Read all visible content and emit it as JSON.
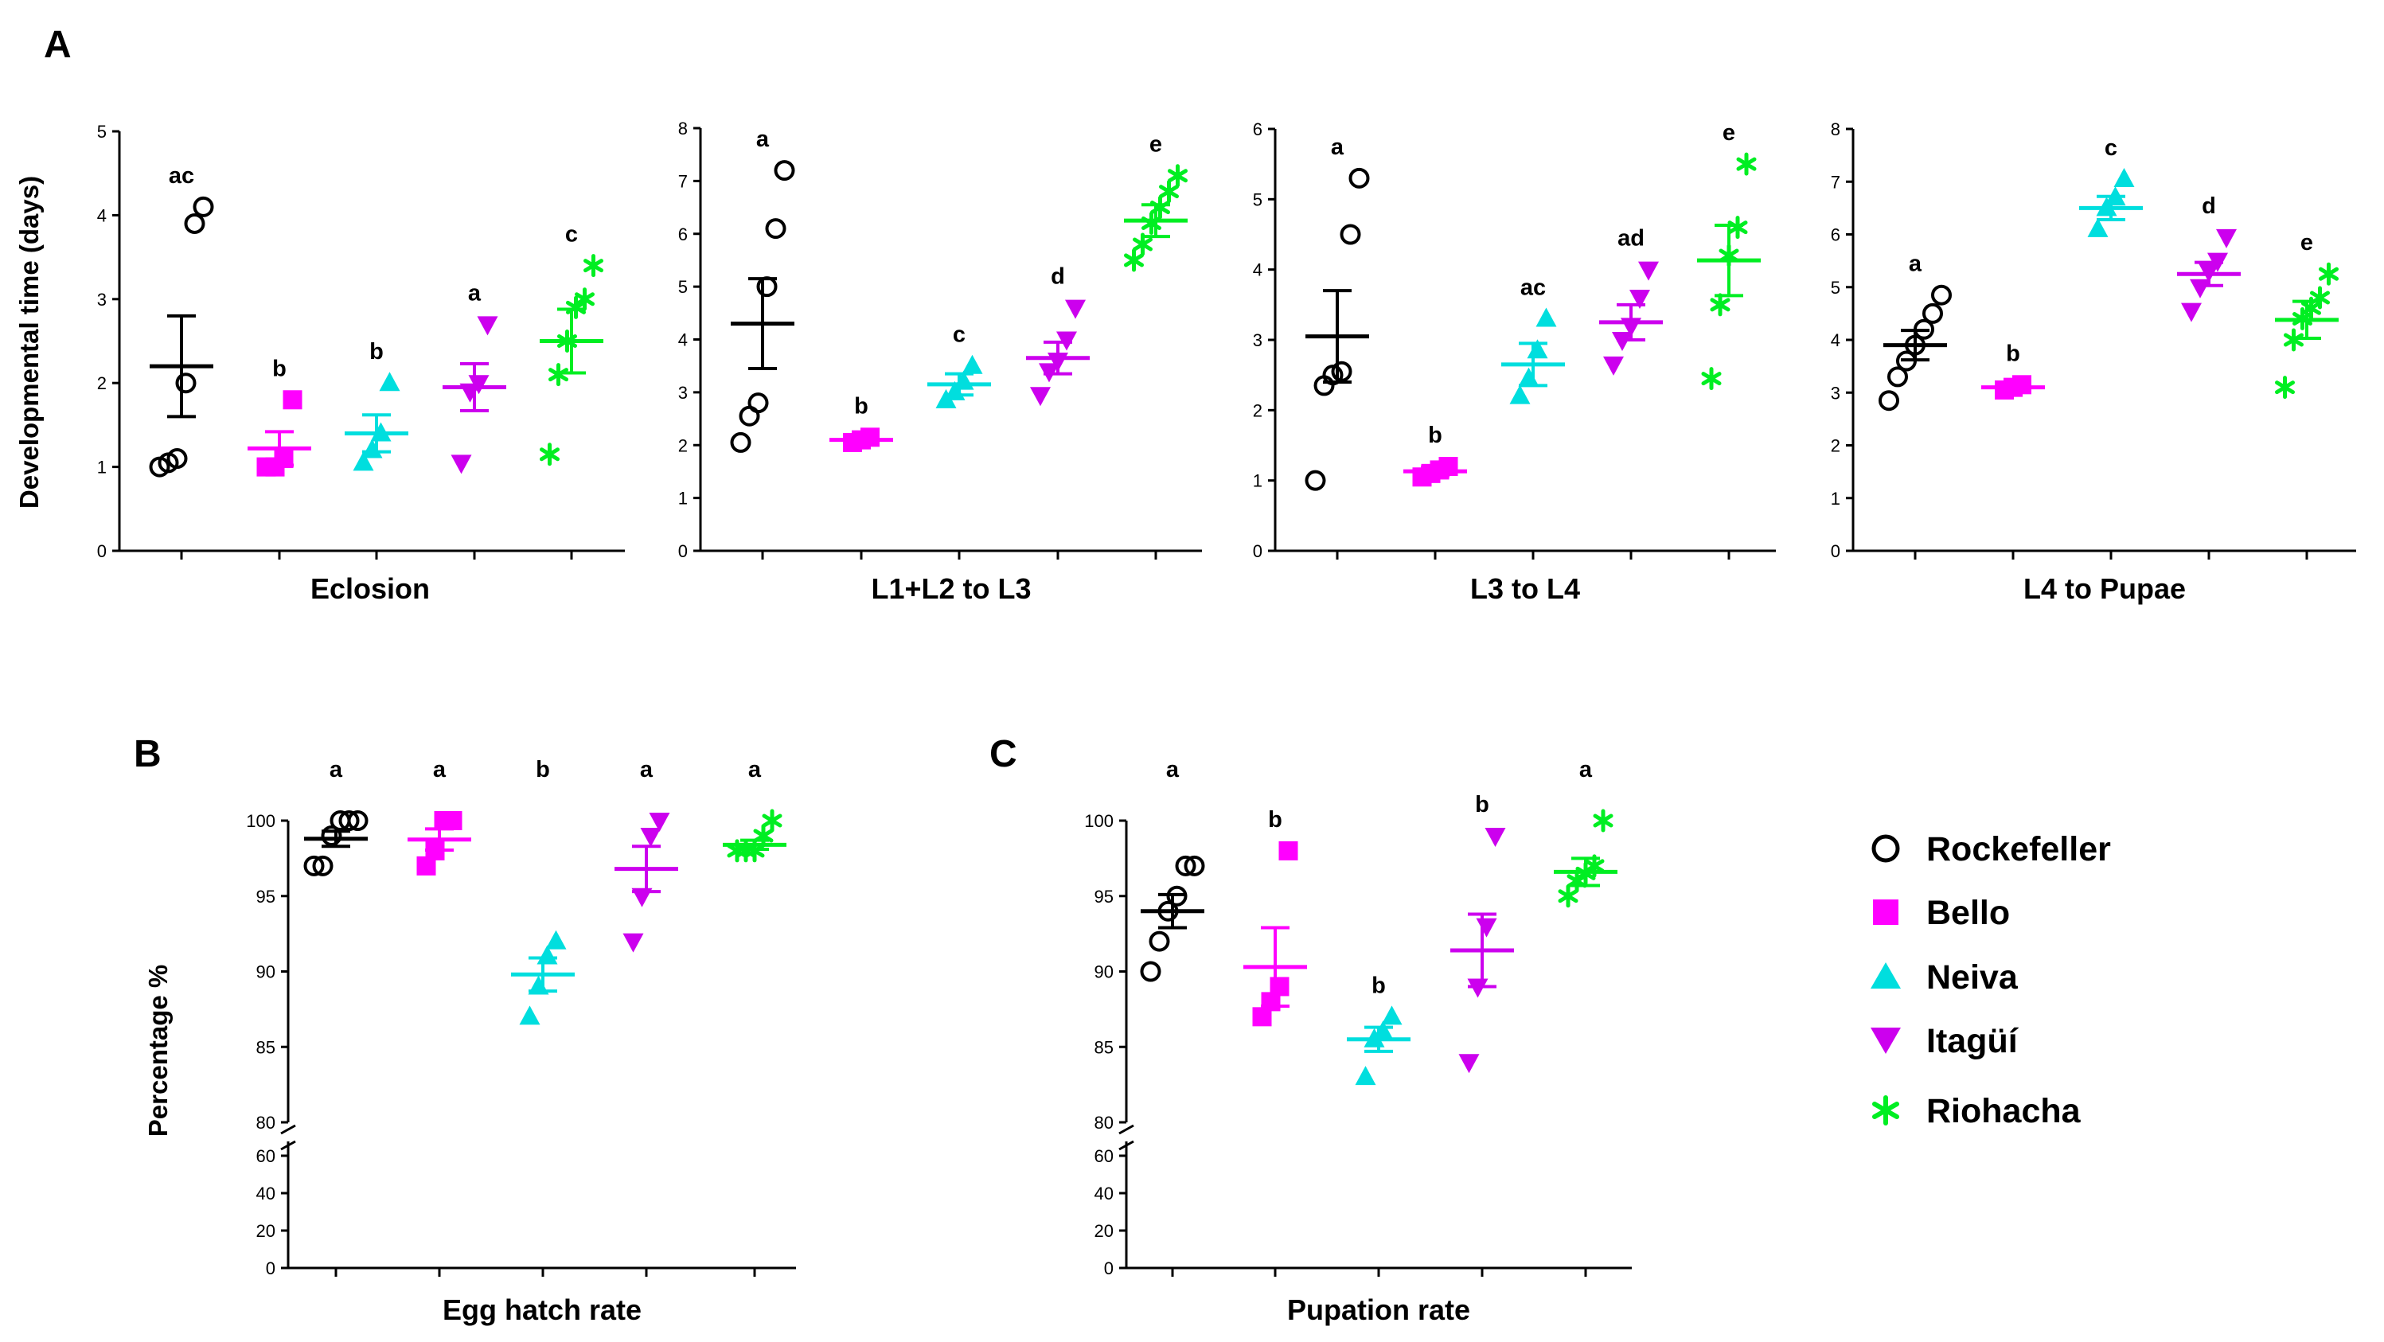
{
  "colors": {
    "Rockefeller": "#000000",
    "Bello": "#ff00ff",
    "Neiva": "#00dede",
    "Itagui": "#cc00ee",
    "Riohacha": "#00ee22"
  },
  "legend": {
    "items": [
      {
        "label": "Rockefeller",
        "marker": "circle-open-icon",
        "color": "#000000"
      },
      {
        "label": "Bello",
        "marker": "square-icon",
        "color": "#ff00ff"
      },
      {
        "label": "Neiva",
        "marker": "triangle-up-icon",
        "color": "#00dede"
      },
      {
        "label": "Itagüí",
        "marker": "triangle-down-icon",
        "color": "#cc00ee"
      },
      {
        "label": "Riohacha",
        "marker": "asterisk-icon",
        "color": "#00ee22"
      }
    ]
  },
  "chart_data": [
    {
      "panel": "A",
      "type": "scatter",
      "xlabel": "Eclosion",
      "ylabel": "Developmental time (days)",
      "ylim": [
        0,
        5
      ],
      "yticks": [
        0,
        1,
        2,
        3,
        4,
        5
      ],
      "groups": [
        {
          "name": "Rockefeller",
          "points": [
            1.0,
            1.05,
            1.1,
            2.0,
            3.9,
            4.1
          ],
          "mean": 2.2,
          "sem": 0.6,
          "letter": "ac"
        },
        {
          "name": "Bello",
          "points": [
            1.0,
            1.0,
            1.1,
            1.8
          ],
          "mean": 1.22,
          "sem": 0.2,
          "letter": "b"
        },
        {
          "name": "Neiva",
          "points": [
            1.05,
            1.2,
            1.4,
            2.0
          ],
          "mean": 1.4,
          "sem": 0.22,
          "letter": "b"
        },
        {
          "name": "Itagüí",
          "points": [
            1.05,
            1.9,
            2.0,
            2.7
          ],
          "mean": 1.95,
          "sem": 0.28,
          "letter": "a"
        },
        {
          "name": "Riohacha",
          "points": [
            1.15,
            2.1,
            2.5,
            2.9,
            3.0,
            3.4
          ],
          "mean": 2.5,
          "sem": 0.38,
          "letter": "c"
        }
      ]
    },
    {
      "panel": "A2",
      "type": "scatter",
      "xlabel": "L1+L2 to L3",
      "ylabel": "",
      "ylim": [
        0,
        8
      ],
      "yticks": [
        0,
        1,
        2,
        3,
        4,
        5,
        6,
        7,
        8
      ],
      "groups": [
        {
          "name": "Rockefeller",
          "points": [
            2.05,
            2.55,
            2.8,
            5.0,
            6.1,
            7.2
          ],
          "mean": 4.3,
          "sem": 0.85,
          "letter": "a"
        },
        {
          "name": "Bello",
          "points": [
            2.05,
            2.1,
            2.15
          ],
          "mean": 2.1,
          "sem": 0.05,
          "letter": "b"
        },
        {
          "name": "Neiva",
          "points": [
            2.85,
            3.0,
            3.2,
            3.5
          ],
          "mean": 3.15,
          "sem": 0.2,
          "letter": "c"
        },
        {
          "name": "Itagüí",
          "points": [
            2.95,
            3.4,
            3.6,
            4.0,
            4.6
          ],
          "mean": 3.65,
          "sem": 0.3,
          "letter": "d"
        },
        {
          "name": "Riohacha",
          "points": [
            5.5,
            5.8,
            6.2,
            6.5,
            6.8,
            7.1
          ],
          "mean": 6.25,
          "sem": 0.3,
          "letter": "e"
        }
      ]
    },
    {
      "panel": "A3",
      "type": "scatter",
      "xlabel": "L3 to L4",
      "ylabel": "",
      "ylim": [
        0,
        6
      ],
      "yticks": [
        0,
        1,
        2,
        3,
        4,
        5,
        6
      ],
      "groups": [
        {
          "name": "Rockefeller",
          "points": [
            1.0,
            2.35,
            2.5,
            2.55,
            4.5,
            5.3
          ],
          "mean": 3.05,
          "sem": 0.65,
          "letter": "a"
        },
        {
          "name": "Bello",
          "points": [
            1.05,
            1.1,
            1.15,
            1.2
          ],
          "mean": 1.13,
          "sem": 0.06,
          "letter": "b"
        },
        {
          "name": "Neiva",
          "points": [
            2.2,
            2.45,
            2.85,
            3.3
          ],
          "mean": 2.65,
          "sem": 0.3,
          "letter": "ac"
        },
        {
          "name": "Itagüí",
          "points": [
            2.65,
            3.0,
            3.2,
            3.6,
            4.0
          ],
          "mean": 3.25,
          "sem": 0.25,
          "letter": "ad"
        },
        {
          "name": "Riohacha",
          "points": [
            2.45,
            3.5,
            4.2,
            4.6,
            5.5
          ],
          "mean": 4.13,
          "sem": 0.5,
          "letter": "e"
        }
      ]
    },
    {
      "panel": "A4",
      "type": "scatter",
      "xlabel": "L4 to Pupae",
      "ylabel": "",
      "ylim": [
        0,
        8
      ],
      "yticks": [
        0,
        1,
        2,
        3,
        4,
        5,
        6,
        7,
        8
      ],
      "groups": [
        {
          "name": "Rockefeller",
          "points": [
            2.85,
            3.3,
            3.6,
            3.9,
            4.2,
            4.5,
            4.85
          ],
          "mean": 3.9,
          "sem": 0.28,
          "letter": "a"
        },
        {
          "name": "Bello",
          "points": [
            3.05,
            3.1,
            3.15
          ],
          "mean": 3.1,
          "sem": 0.05,
          "letter": "b"
        },
        {
          "name": "Neiva",
          "points": [
            6.1,
            6.5,
            6.7,
            7.05
          ],
          "mean": 6.5,
          "sem": 0.22,
          "letter": "c"
        },
        {
          "name": "Itagüí",
          "points": [
            4.55,
            5.0,
            5.3,
            5.5,
            5.95
          ],
          "mean": 5.25,
          "sem": 0.22,
          "letter": "d"
        },
        {
          "name": "Riohacha",
          "points": [
            3.1,
            4.0,
            4.4,
            4.6,
            4.8,
            5.25
          ],
          "mean": 4.38,
          "sem": 0.35,
          "letter": "e"
        }
      ]
    },
    {
      "panel": "B",
      "type": "scatter",
      "xlabel": "Egg hatch rate",
      "ylabel": "Percentage %",
      "ylim": [
        80,
        100
      ],
      "yticks": [
        80,
        85,
        90,
        95,
        100
      ],
      "lower_ylim": [
        0,
        60
      ],
      "lower_yticks": [
        0,
        20,
        40,
        60
      ],
      "groups": [
        {
          "name": "Rockefeller",
          "points": [
            97.0,
            97.0,
            99.0,
            100.0,
            100.0,
            100.0
          ],
          "mean": 98.8,
          "sem": 0.5,
          "letter": "a"
        },
        {
          "name": "Bello",
          "points": [
            97.0,
            98.0,
            100.0,
            100.0
          ],
          "mean": 98.75,
          "sem": 0.7,
          "letter": "a"
        },
        {
          "name": "Neiva",
          "points": [
            87.0,
            89.0,
            91.0,
            92.0
          ],
          "mean": 89.8,
          "sem": 1.1,
          "letter": "b"
        },
        {
          "name": "Itagüí",
          "points": [
            92.0,
            95.0,
            99.0,
            100.0
          ],
          "mean": 96.8,
          "sem": 1.5,
          "letter": "a"
        },
        {
          "name": "Riohacha",
          "points": [
            98.0,
            98.0,
            98.0,
            99.0,
            100.0
          ],
          "mean": 98.4,
          "sem": 0.3,
          "letter": "a"
        }
      ]
    },
    {
      "panel": "C",
      "type": "scatter",
      "xlabel": "Pupation rate",
      "ylabel": "",
      "ylim": [
        80,
        100
      ],
      "yticks": [
        80,
        85,
        90,
        95,
        100
      ],
      "lower_ylim": [
        0,
        60
      ],
      "lower_yticks": [
        0,
        20,
        40,
        60
      ],
      "groups": [
        {
          "name": "Rockefeller",
          "points": [
            90.0,
            92.0,
            94.0,
            95.0,
            97.0,
            97.0
          ],
          "mean": 94.0,
          "sem": 1.1,
          "letter": "a"
        },
        {
          "name": "Bello",
          "points": [
            87.0,
            88.0,
            89.0,
            98.0
          ],
          "mean": 90.3,
          "sem": 2.6,
          "letter": "b"
        },
        {
          "name": "Neiva",
          "points": [
            83.0,
            85.5,
            86.0,
            87.0
          ],
          "mean": 85.5,
          "sem": 0.8,
          "letter": "b"
        },
        {
          "name": "Itagüí",
          "points": [
            84.0,
            89.0,
            93.0,
            99.0
          ],
          "mean": 91.4,
          "sem": 2.4,
          "letter": "b"
        },
        {
          "name": "Riohacha",
          "points": [
            95.0,
            96.0,
            96.5,
            97.0,
            100.0
          ],
          "mean": 96.6,
          "sem": 0.9,
          "letter": "a"
        }
      ]
    }
  ],
  "panel_labels": {
    "A": "A",
    "B": "B",
    "C": "C"
  }
}
